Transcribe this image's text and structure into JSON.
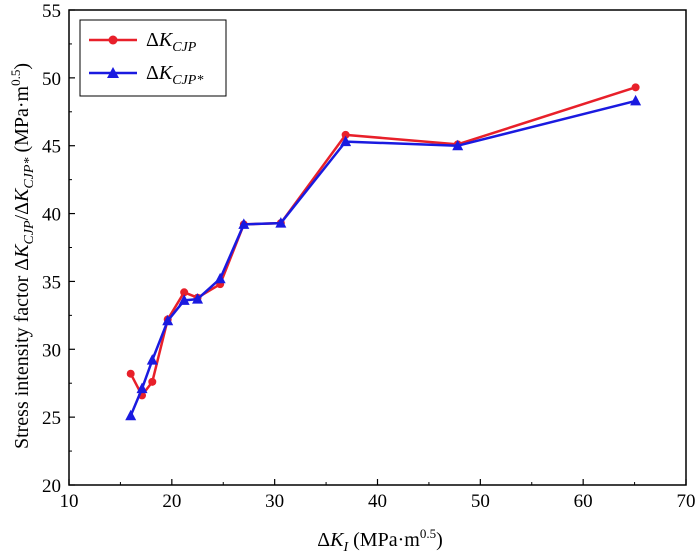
{
  "chart_data": {
    "type": "line",
    "xlabel": "ΔK_I (MPa·m^0.5)",
    "xlabel_parts": {
      "prefix": "Δ",
      "var": "K",
      "sub": "I",
      "unit": " (MPa·m",
      "sup": "0.5",
      "close": ")"
    },
    "ylabel": "Stress intensity factor ΔK_CJP/ΔK_CJP* (MPa·m^0.5)",
    "ylabel_parts": {
      "text": "Stress intensity factor Δ",
      "var1": "K",
      "sub1": "CJP",
      "sep": "/Δ",
      "var2": "K",
      "sub2": "CJP*",
      "unit": " (MPa·m",
      "sup": "0.5",
      "close": ")"
    },
    "xlim": [
      10,
      70
    ],
    "ylim": [
      20,
      55
    ],
    "xticks": [
      10,
      20,
      30,
      40,
      50,
      60,
      70
    ],
    "yticks": [
      20,
      25,
      30,
      35,
      40,
      45,
      50,
      55
    ],
    "grid": false,
    "legend_position": "top-left",
    "series": [
      {
        "name": "ΔK_CJP",
        "name_parts": {
          "prefix": "Δ",
          "var": "K",
          "sub": "CJP"
        },
        "color": "#e8202a",
        "marker": "circle",
        "x": [
          16.0,
          17.1,
          18.1,
          19.6,
          21.2,
          22.5,
          24.7,
          27.0,
          30.6,
          36.9,
          47.8,
          65.1
        ],
        "y": [
          28.2,
          26.6,
          27.6,
          32.2,
          34.2,
          33.8,
          34.8,
          39.2,
          39.3,
          45.8,
          45.1,
          49.3
        ]
      },
      {
        "name": "ΔK_CJP*",
        "name_parts": {
          "prefix": "Δ",
          "var": "K",
          "sub": "CJP*"
        },
        "color": "#1a1ae0",
        "marker": "triangle",
        "x": [
          16.0,
          17.1,
          18.1,
          19.6,
          21.2,
          22.5,
          24.7,
          27.0,
          30.6,
          36.9,
          47.8,
          65.1
        ],
        "y": [
          25.1,
          27.1,
          29.2,
          32.1,
          33.6,
          33.7,
          35.2,
          39.2,
          39.3,
          45.3,
          45.0,
          48.3
        ]
      }
    ]
  }
}
